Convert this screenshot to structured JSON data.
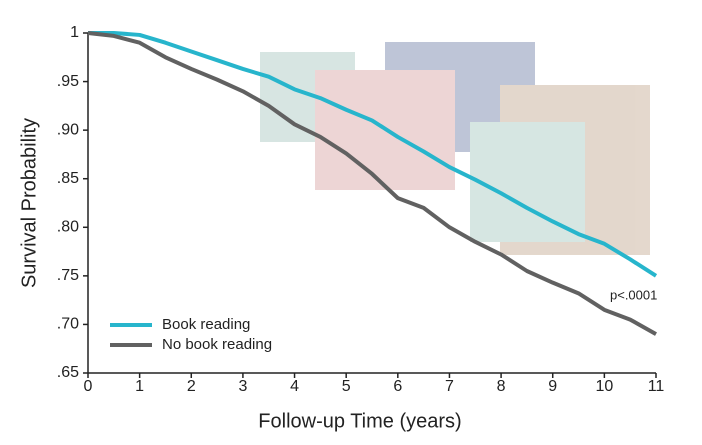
{
  "chart_data": {
    "type": "line",
    "x_label": "Follow-up Time (years)",
    "y_label": "Survival Probability",
    "annotation": "p<.0001",
    "x": [
      0,
      0.5,
      1,
      1.5,
      2,
      2.5,
      3,
      3.5,
      4,
      4.5,
      5,
      5.5,
      6,
      6.5,
      7,
      7.5,
      8,
      8.5,
      9,
      9.5,
      10,
      10.5,
      11
    ],
    "series": [
      {
        "name": "Book reading",
        "color": "#27b5cc",
        "values": [
          1,
          1,
          0.998,
          0.99,
          0.981,
          0.972,
          0.963,
          0.955,
          0.942,
          0.933,
          0.921,
          0.91,
          0.893,
          0.878,
          0.862,
          0.849,
          0.835,
          0.82,
          0.806,
          0.793,
          0.783,
          0.767,
          0.75
        ]
      },
      {
        "name": "No book reading",
        "color": "#616161",
        "values": [
          1,
          0.997,
          0.99,
          0.975,
          0.963,
          0.952,
          0.94,
          0.925,
          0.906,
          0.893,
          0.876,
          0.855,
          0.83,
          0.82,
          0.8,
          0.785,
          0.772,
          0.755,
          0.743,
          0.732,
          0.715,
          0.705,
          0.69
        ]
      }
    ],
    "xlim": [
      0,
      11
    ],
    "xticks": [
      0,
      1,
      2,
      3,
      4,
      5,
      6,
      7,
      8,
      9,
      10,
      11
    ],
    "ylim": [
      0.65,
      1
    ],
    "yticks": [
      {
        "value": 0.65,
        "label": ".65"
      },
      {
        "value": 0.7,
        "label": ".70"
      },
      {
        "value": 0.75,
        "label": ".75"
      },
      {
        "value": 0.8,
        "label": ".80"
      },
      {
        "value": 0.85,
        "label": ".85"
      },
      {
        "value": 0.9,
        "label": ".90"
      },
      {
        "value": 0.95,
        "label": ".95"
      },
      1
    ],
    "legend": "lower left"
  }
}
